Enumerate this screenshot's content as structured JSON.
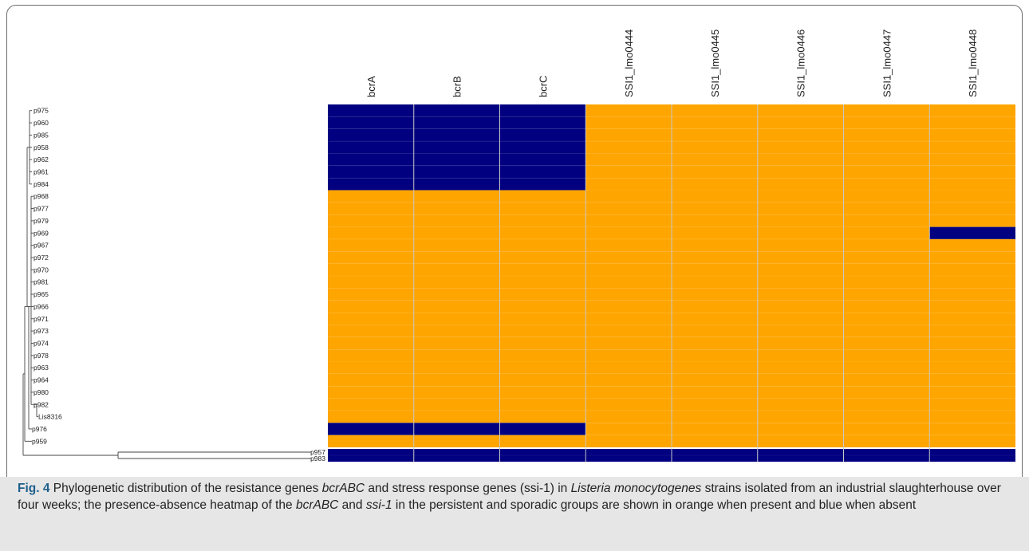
{
  "chart_data": {
    "type": "heatmap",
    "columns": [
      "bcrA",
      "bcrB",
      "bcrC",
      "SSI1_lmo0444",
      "SSI1_lmo0445",
      "SSI1_lmo0446",
      "SSI1_lmo0447",
      "SSI1_lmo0448"
    ],
    "rows": [
      "p975",
      "p960",
      "p985",
      "p958",
      "p962",
      "p961",
      "p984",
      "p968",
      "p977",
      "p979",
      "p969",
      "p967",
      "p972",
      "p970",
      "p981",
      "p965",
      "p966",
      "p971",
      "p973",
      "p974",
      "p978",
      "p963",
      "p964",
      "p980",
      "p982",
      "Lis8316",
      "p976",
      "p959",
      "p957",
      "p983"
    ],
    "values": [
      [
        0,
        0,
        0,
        1,
        1,
        1,
        1,
        1
      ],
      [
        0,
        0,
        0,
        1,
        1,
        1,
        1,
        1
      ],
      [
        0,
        0,
        0,
        1,
        1,
        1,
        1,
        1
      ],
      [
        0,
        0,
        0,
        1,
        1,
        1,
        1,
        1
      ],
      [
        0,
        0,
        0,
        1,
        1,
        1,
        1,
        1
      ],
      [
        0,
        0,
        0,
        1,
        1,
        1,
        1,
        1
      ],
      [
        0,
        0,
        0,
        1,
        1,
        1,
        1,
        1
      ],
      [
        1,
        1,
        1,
        1,
        1,
        1,
        1,
        1
      ],
      [
        1,
        1,
        1,
        1,
        1,
        1,
        1,
        1
      ],
      [
        1,
        1,
        1,
        1,
        1,
        1,
        1,
        1
      ],
      [
        1,
        1,
        1,
        1,
        1,
        1,
        1,
        0
      ],
      [
        1,
        1,
        1,
        1,
        1,
        1,
        1,
        1
      ],
      [
        1,
        1,
        1,
        1,
        1,
        1,
        1,
        1
      ],
      [
        1,
        1,
        1,
        1,
        1,
        1,
        1,
        1
      ],
      [
        1,
        1,
        1,
        1,
        1,
        1,
        1,
        1
      ],
      [
        1,
        1,
        1,
        1,
        1,
        1,
        1,
        1
      ],
      [
        1,
        1,
        1,
        1,
        1,
        1,
        1,
        1
      ],
      [
        1,
        1,
        1,
        1,
        1,
        1,
        1,
        1
      ],
      [
        1,
        1,
        1,
        1,
        1,
        1,
        1,
        1
      ],
      [
        1,
        1,
        1,
        1,
        1,
        1,
        1,
        1
      ],
      [
        1,
        1,
        1,
        1,
        1,
        1,
        1,
        1
      ],
      [
        1,
        1,
        1,
        1,
        1,
        1,
        1,
        1
      ],
      [
        1,
        1,
        1,
        1,
        1,
        1,
        1,
        1
      ],
      [
        1,
        1,
        1,
        1,
        1,
        1,
        1,
        1
      ],
      [
        1,
        1,
        1,
        1,
        1,
        1,
        1,
        1
      ],
      [
        1,
        1,
        1,
        1,
        1,
        1,
        1,
        1
      ],
      [
        0,
        0,
        0,
        1,
        1,
        1,
        1,
        1
      ],
      [
        1,
        1,
        1,
        1,
        1,
        1,
        1,
        1
      ],
      [
        0,
        0,
        0,
        0,
        0,
        0,
        0,
        0
      ],
      [
        0,
        0,
        0,
        0,
        0,
        0,
        0,
        0
      ]
    ],
    "colors": {
      "present": "#ffa500",
      "absent": "#000080"
    },
    "tree": {
      "description_of_topology": "cladogram grouping rows; p957 and p983 form a long outgroup branch",
      "outgroup": [
        "p957",
        "p983"
      ]
    }
  },
  "caption": {
    "label": "Fig. 4",
    "segments": [
      {
        "text": " Phylogenetic distribution of the resistance genes ",
        "italic": false
      },
      {
        "text": "bcrABC",
        "italic": true
      },
      {
        "text": " and stress response genes (ssi-1) in ",
        "italic": false
      },
      {
        "text": "Listeria monocytogenes",
        "italic": true
      },
      {
        "text": " strains isolated from an industrial slaughterhouse over four weeks; the presence-absence heatmap of the ",
        "italic": false
      },
      {
        "text": "bcrABC",
        "italic": true
      },
      {
        "text": " and ",
        "italic": false
      },
      {
        "text": "ssi-1",
        "italic": true
      },
      {
        "text": " in the persistent and sporadic groups are shown in orange when present and blue when absent",
        "italic": false
      }
    ]
  }
}
